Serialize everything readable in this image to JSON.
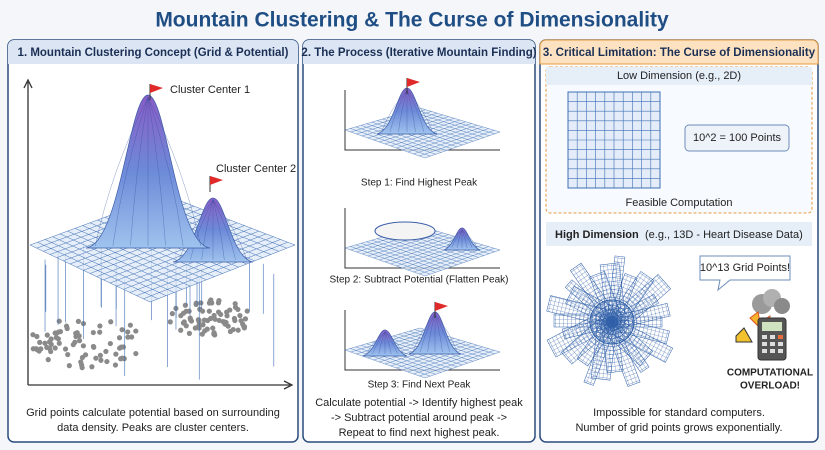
{
  "title": "Mountain Clustering & The Curse of Dimensionality",
  "panel1": {
    "header": "1. Mountain Clustering Concept (Grid & Potential)",
    "flags": [
      "Cluster Center 1",
      "Cluster Center 2"
    ],
    "caption": [
      "Grid points calculate potential based on surrounding",
      "data density. Peaks are cluster centers."
    ]
  },
  "panel2": {
    "header": "2. The Process (Iterative Mountain Finding)",
    "steps": [
      "Step 1: Find Highest Peak",
      "Step 2: Subtract Potential (Flatten Peak)",
      "Step 3: Find Next Peak"
    ],
    "caption": [
      "Calculate potential -> Identify highest peak",
      "-> Subtract potential around peak ->",
      "Repeat to find next highest peak."
    ]
  },
  "panel3": {
    "header": "3. Critical Limitation: The Curse of Dimensionality",
    "low": {
      "heading": "Low Dimension (e.g., 2D)",
      "callout": "10^2 = 100 Points",
      "footer": "Feasible Computation"
    },
    "high": {
      "heading_bold": "High Dimension",
      "heading_rest": "(e.g., 13D - Heart Disease Data)",
      "callout": "10^13 Grid Points!",
      "warning": [
        "COMPUTATIONAL",
        "OVERLOAD!"
      ]
    },
    "caption": [
      "Impossible for standard computers.",
      "Number of grid points grows exponentially."
    ]
  }
}
